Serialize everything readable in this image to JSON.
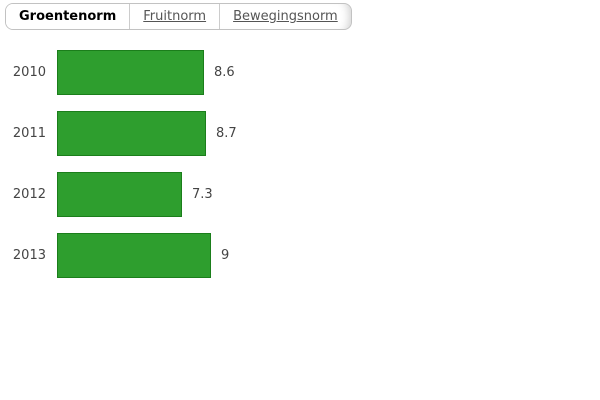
{
  "tabs": [
    {
      "label": "Groentenorm",
      "active": true
    },
    {
      "label": "Fruitnorm",
      "active": false
    },
    {
      "label": "Bewegingsnorm",
      "active": false
    }
  ],
  "chart_data": {
    "type": "bar",
    "orientation": "horizontal",
    "title": "",
    "xlabel": "",
    "ylabel": "",
    "categories": [
      "2010",
      "2011",
      "2012",
      "2013"
    ],
    "values": [
      8.6,
      8.7,
      7.3,
      9
    ],
    "value_labels": [
      "8.6",
      "8.7",
      "7.3",
      "9"
    ],
    "xlim": [
      0,
      9
    ],
    "grid": false,
    "legend": "none",
    "bar_color": "#2e9e2e",
    "bar_border_color": "#1b7e1b",
    "label_color": "#444444"
  }
}
